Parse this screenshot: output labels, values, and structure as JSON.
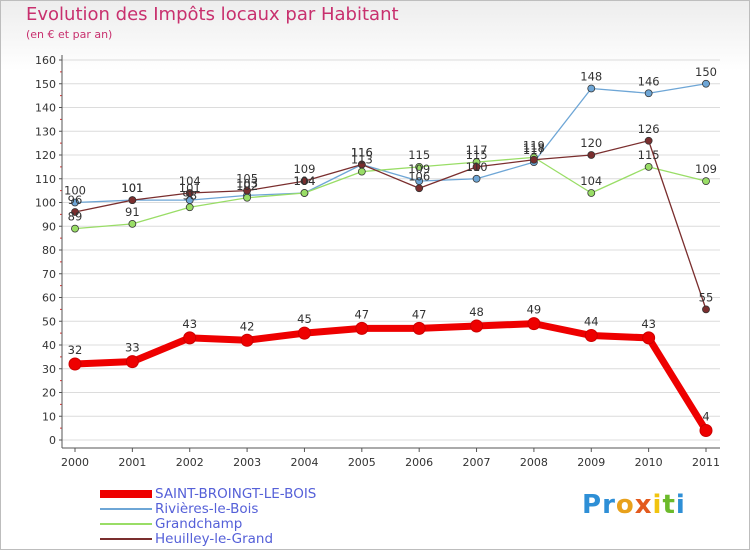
{
  "brand": {
    "letters": [
      {
        "ch": "P",
        "color": "#2e8fd6"
      },
      {
        "ch": "r",
        "color": "#2e8fd6"
      },
      {
        "ch": "o",
        "color": "#e8a11c"
      },
      {
        "ch": "x",
        "color": "#e35a1e"
      },
      {
        "ch": "i",
        "color": "#f1c40f"
      },
      {
        "ch": "t",
        "color": "#6cba2b"
      },
      {
        "ch": "i",
        "color": "#2e8fd6"
      }
    ]
  },
  "chart_data": {
    "type": "line",
    "title": "Evolution des Impôts locaux par Habitant",
    "subtitle": "(en € et par an)",
    "categories": [
      "2000",
      "2001",
      "2002",
      "2003",
      "2004",
      "2005",
      "2006",
      "2007",
      "2008",
      "2009",
      "2010",
      "2011"
    ],
    "ylim": [
      0,
      160
    ],
    "yticks": [
      0,
      10,
      20,
      30,
      40,
      50,
      60,
      70,
      80,
      90,
      100,
      110,
      120,
      130,
      140,
      150,
      160
    ],
    "grid": true,
    "legend_position": "bottom-left",
    "series": [
      {
        "name": "SAINT-BROINGT-LE-BOIS",
        "color": "#ee0000",
        "values": [
          32,
          33,
          43,
          42,
          45,
          47,
          47,
          48,
          49,
          44,
          43,
          4
        ]
      },
      {
        "name": "Rivières-le-Bois",
        "color": "#6ea6d6",
        "values": [
          100,
          101,
          101,
          103,
          104,
          116,
          109,
          110,
          117,
          148,
          146,
          150
        ]
      },
      {
        "name": "Grandchamp",
        "color": "#99dd66",
        "values": [
          89,
          91,
          98,
          102,
          104,
          113,
          115,
          117,
          119,
          104,
          115,
          109
        ]
      },
      {
        "name": "Heuilley-le-Grand",
        "color": "#7a2e2e",
        "values": [
          96,
          101,
          104,
          105,
          109,
          116,
          106,
          115,
          118,
          120,
          126,
          55
        ]
      }
    ]
  }
}
